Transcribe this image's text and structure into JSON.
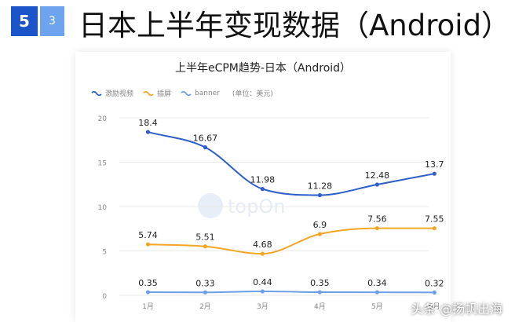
{
  "header": {
    "section_number": "5",
    "sub_number": "3",
    "title": "日本上半年变现数据（Android）"
  },
  "colors": {
    "badge_primary": "#1a54c8",
    "badge_secondary": "#6ea3ee"
  },
  "chart_data": {
    "type": "line",
    "title": "上半年eCPM趋势-日本（Android）",
    "unit_note": "(单位：美元)",
    "categories": [
      "1月",
      "2月",
      "3月",
      "4月",
      "5月",
      "6月"
    ],
    "series": [
      {
        "name": "激励视频",
        "color": "#2e5fc9",
        "values": [
          18.4,
          16.67,
          11.98,
          11.28,
          12.48,
          13.7
        ],
        "labels": [
          "18.4",
          "16.67",
          "11.98",
          "11.28",
          "12.48",
          "13.7"
        ]
      },
      {
        "name": "插屏",
        "color": "#f2a623",
        "values": [
          5.74,
          5.51,
          4.68,
          6.9,
          7.56,
          7.55
        ],
        "labels": [
          "5.74",
          "5.51",
          "4.68",
          "6.9",
          "7.56",
          "7.55"
        ]
      },
      {
        "name": "banner",
        "color": "#6c9fe6",
        "values": [
          0.35,
          0.33,
          0.44,
          0.35,
          0.34,
          0.32
        ],
        "labels": [
          "0.35",
          "0.33",
          "0.44",
          "0.35",
          "0.34",
          "0.32"
        ]
      }
    ],
    "yticks": [
      "0",
      "5",
      "10",
      "15",
      "20"
    ],
    "ylim": [
      0,
      20
    ],
    "xlabel": "",
    "ylabel": "",
    "grid": true,
    "smooth": true,
    "legend_position": "top-left"
  },
  "watermark_logo": "topOn",
  "footer_watermark": "头条 @扬帆出海"
}
